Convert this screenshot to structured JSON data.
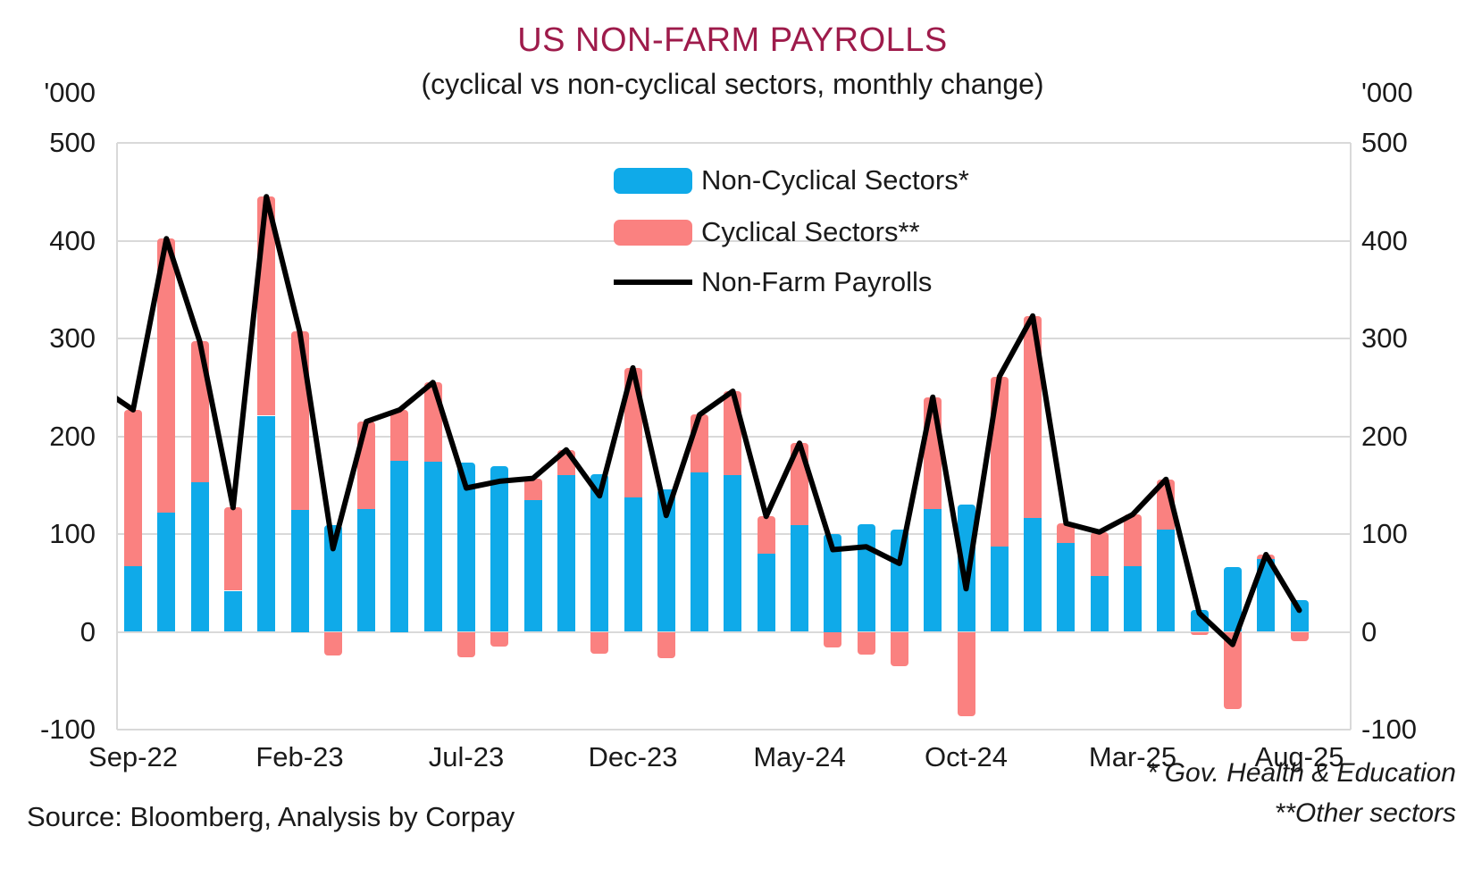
{
  "title": "US NON-FARM PAYROLLS",
  "subtitle": "(cyclical vs non-cyclical sectors, monthly change)",
  "y_axis_unit_left": "'000",
  "y_axis_unit_right": "'000",
  "source": "Source: Bloomberg, Analysis by Corpay",
  "footnotes": [
    "* Gov. Health & Education",
    "**Other sectors"
  ],
  "legend": [
    {
      "label": "Non-Cyclical Sectors*",
      "type": "bar",
      "color": "#0faae9"
    },
    {
      "label": "Cyclical Sectors**",
      "type": "bar",
      "color": "#fa8180"
    },
    {
      "label": "Non-Farm Payrolls",
      "type": "line",
      "color": "#000000"
    }
  ],
  "colors": {
    "title": "#9e1b4b",
    "text": "#1a1a1a",
    "gridline": "#d9d9d9",
    "non_cyclical_bar": "#0faae9",
    "cyclical_bar": "#fa8180",
    "payrolls_line": "#000000",
    "background": "#ffffff"
  },
  "chart_data": {
    "type": "bar",
    "subtype": "stacked-bars-with-line",
    "title": "US NON-FARM PAYROLLS",
    "subtitle": "(cyclical vs non-cyclical sectors, monthly change)",
    "unit": "'000",
    "categories": [
      "Sep-22",
      "Oct-22",
      "Nov-22",
      "Dec-22",
      "Jan-23",
      "Feb-23",
      "Mar-23",
      "Apr-23",
      "May-23",
      "Jun-23",
      "Jul-23",
      "Aug-23",
      "Sep-23",
      "Oct-23",
      "Nov-23",
      "Dec-23",
      "Jan-24",
      "Feb-24",
      "Mar-24",
      "Apr-24",
      "May-24",
      "Jun-24",
      "Jul-24",
      "Aug-24",
      "Sep-24",
      "Oct-24",
      "Nov-24",
      "Dec-24",
      "Jan-25",
      "Feb-25",
      "Mar-25",
      "Apr-25",
      "May-25",
      "Jun-25",
      "Jul-25",
      "Aug-25"
    ],
    "x_tick_labels": [
      "Sep-22",
      "Feb-23",
      "Jul-23",
      "Dec-23",
      "May-24",
      "Oct-24",
      "Mar-25",
      "Aug-25"
    ],
    "series": [
      {
        "name": "Non-Cyclical Sectors*",
        "type": "bar",
        "color": "#0faae9",
        "values": [
          67,
          122,
          153,
          42,
          221,
          125,
          109,
          126,
          175,
          174,
          173,
          169,
          135,
          160,
          161,
          137,
          146,
          163,
          160,
          80,
          109,
          100,
          110,
          105,
          126,
          130,
          87,
          116,
          91,
          57,
          67,
          105,
          22,
          66,
          74,
          32
        ]
      },
      {
        "name": "Cyclical Sectors**",
        "type": "bar",
        "color": "#fa8180",
        "values": [
          160,
          280,
          144,
          85,
          224,
          182,
          -24,
          89,
          52,
          81,
          -26,
          -15,
          22,
          26,
          -22,
          133,
          -27,
          59,
          86,
          38,
          84,
          -16,
          -23,
          -35,
          114,
          -86,
          174,
          207,
          20,
          45,
          53,
          51,
          -3,
          -79,
          5,
          -10
        ]
      },
      {
        "name": "Non-Farm Payrolls",
        "type": "line",
        "color": "#000000",
        "values": [
          227,
          402,
          297,
          127,
          445,
          307,
          85,
          215,
          227,
          255,
          147,
          154,
          157,
          186,
          139,
          270,
          119,
          222,
          246,
          118,
          193,
          84,
          87,
          70,
          240,
          44,
          261,
          323,
          111,
          102,
          120,
          156,
          19,
          -13,
          79,
          22
        ]
      }
    ],
    "ylim": [
      -100,
      500
    ],
    "ytick_step": 100,
    "grid": "horizontal",
    "legend_position": "inside-top-center",
    "line_lead_in_value": 250
  }
}
